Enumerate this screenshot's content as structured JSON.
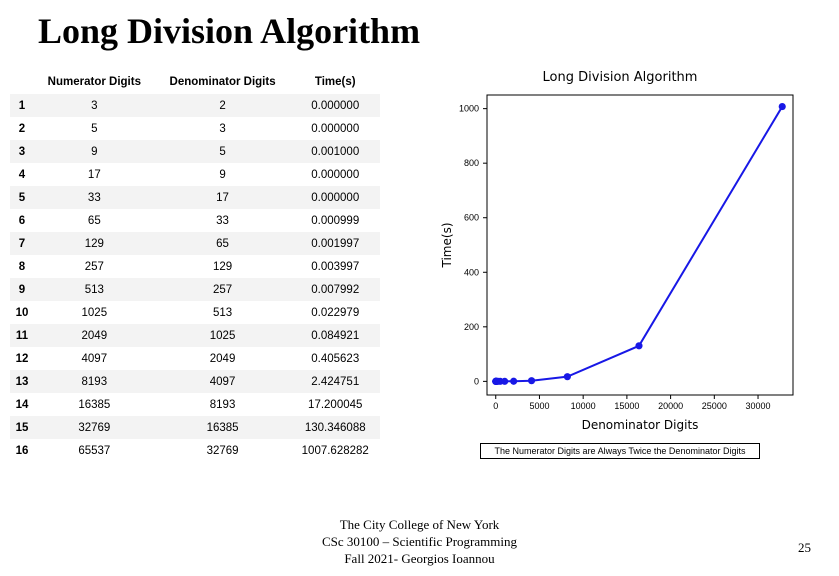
{
  "title": "Long Division Algorithm",
  "table": {
    "columns": [
      "",
      "Numerator Digits",
      "Denominator Digits",
      "Time(s)"
    ],
    "rows": [
      [
        "1",
        "3",
        "2",
        "0.000000"
      ],
      [
        "2",
        "5",
        "3",
        "0.000000"
      ],
      [
        "3",
        "9",
        "5",
        "0.001000"
      ],
      [
        "4",
        "17",
        "9",
        "0.000000"
      ],
      [
        "5",
        "33",
        "17",
        "0.000000"
      ],
      [
        "6",
        "65",
        "33",
        "0.000999"
      ],
      [
        "7",
        "129",
        "65",
        "0.001997"
      ],
      [
        "8",
        "257",
        "129",
        "0.003997"
      ],
      [
        "9",
        "513",
        "257",
        "0.007992"
      ],
      [
        "10",
        "1025",
        "513",
        "0.022979"
      ],
      [
        "11",
        "2049",
        "1025",
        "0.084921"
      ],
      [
        "12",
        "4097",
        "2049",
        "0.405623"
      ],
      [
        "13",
        "8193",
        "4097",
        "2.424751"
      ],
      [
        "14",
        "16385",
        "8193",
        "17.200045"
      ],
      [
        "15",
        "32769",
        "16385",
        "130.346088"
      ],
      [
        "16",
        "65537",
        "32769",
        "1007.628282"
      ]
    ]
  },
  "chart": {
    "type": "line",
    "title": "Long Division Algorithm",
    "xlabel": "Denominator Digits",
    "ylabel": "Time(s)",
    "xlim": [
      -1000,
      34000
    ],
    "ylim": [
      -50,
      1050
    ],
    "xtick_step": 5000,
    "xticks": [
      0,
      5000,
      10000,
      15000,
      20000,
      25000,
      30000
    ],
    "ytick_step": 200,
    "yticks": [
      0,
      200,
      400,
      600,
      800,
      1000
    ],
    "line_color": "#1818e6",
    "marker_color": "#1818e6",
    "marker_size": 5,
    "line_width": 2,
    "background_color": "#ffffff",
    "border_color": "#000000",
    "tick_fontsize": 9,
    "label_fontsize": 12,
    "title_fontsize": 13,
    "data": [
      {
        "x": 2,
        "y": 0.0
      },
      {
        "x": 3,
        "y": 0.0
      },
      {
        "x": 5,
        "y": 0.001
      },
      {
        "x": 9,
        "y": 0.0
      },
      {
        "x": 17,
        "y": 0.0
      },
      {
        "x": 33,
        "y": 0.000999
      },
      {
        "x": 65,
        "y": 0.001997
      },
      {
        "x": 129,
        "y": 0.003997
      },
      {
        "x": 257,
        "y": 0.007992
      },
      {
        "x": 513,
        "y": 0.022979
      },
      {
        "x": 1025,
        "y": 0.084921
      },
      {
        "x": 2049,
        "y": 0.405623
      },
      {
        "x": 4097,
        "y": 2.424751
      },
      {
        "x": 8193,
        "y": 17.200045
      },
      {
        "x": 16385,
        "y": 130.346088
      },
      {
        "x": 32769,
        "y": 1007.628282
      }
    ],
    "caption": "The Numerator Digits are Always Twice the Denominator Digits"
  },
  "footer": {
    "line1": "The City College of New York",
    "line2": "CSc 30100 – Scientific Programming",
    "line3": "Fall 2021- Georgios Ioannou"
  },
  "page_number": "25"
}
